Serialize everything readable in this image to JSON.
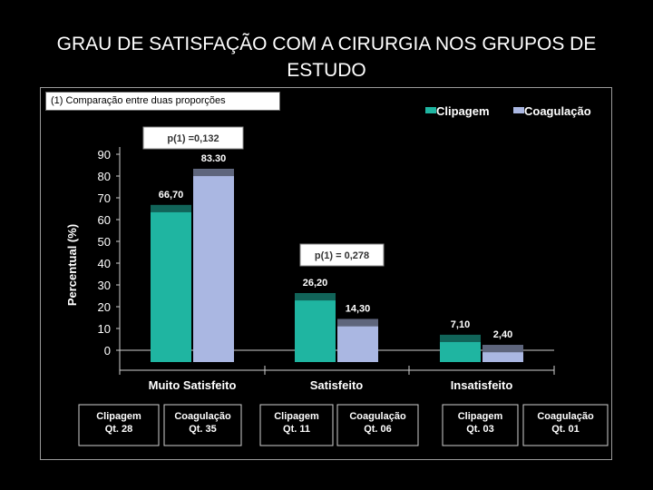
{
  "slide": {
    "title_line1": "GRAU DE SATISFAÇÃO COM A CIRURGIA NOS GRUPOS DE",
    "title_line2": "ESTUDO",
    "note": "(1) Comparação entre duas proporções"
  },
  "chart_data": {
    "type": "bar",
    "ylabel": "Percentual (%)",
    "ylim": [
      0,
      90
    ],
    "yticks": [
      "0",
      "10",
      "20",
      "30",
      "40",
      "50",
      "60",
      "70",
      "80",
      "90"
    ],
    "categories": [
      "Muito Satisfeito",
      "Satisfeito",
      "Insatisfeito"
    ],
    "series": [
      {
        "name": "Clipagem",
        "color": "#1fb5a1",
        "values": [
          66.7,
          26.2,
          7.1
        ],
        "labels": [
          "66,70",
          "26,20",
          "7,10"
        ]
      },
      {
        "name": "Coagulação",
        "color": "#aab7e2",
        "values": [
          83.3,
          14.3,
          2.4
        ],
        "labels": [
          "83.30",
          "14,30",
          "2,40"
        ]
      }
    ],
    "legend_position": "top-right",
    "annotations": [
      "p(1) =0,132",
      "p(1) = 0,278"
    ],
    "group_counts": [
      {
        "line1": "Clipagem",
        "line2": "Qt. 28"
      },
      {
        "line1": "Coagulação",
        "line2": "Qt. 35"
      },
      {
        "line1": "Clipagem",
        "line2": "Qt. 11"
      },
      {
        "line1": "Coagulação",
        "line2": "Qt. 06"
      },
      {
        "line1": "Clipagem",
        "line2": "Qt. 03"
      },
      {
        "line1": "Coagulação",
        "line2": "Qt. 01"
      }
    ]
  }
}
